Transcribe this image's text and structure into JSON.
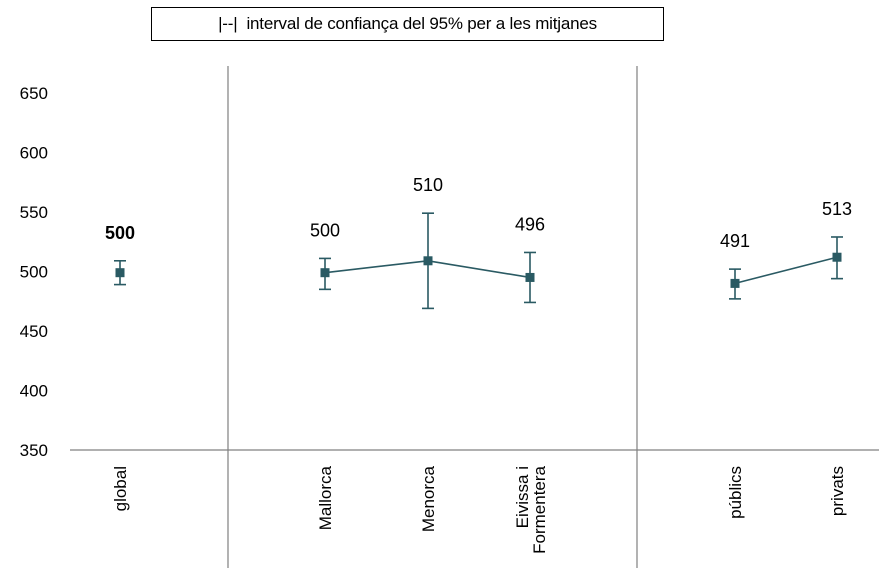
{
  "chart_data": {
    "type": "line",
    "legend_label": "|--|  interval de confiança del 95% per a les mitjanes",
    "legend_position": "top",
    "ylim": [
      350,
      650
    ],
    "yticks": [
      350,
      400,
      450,
      500,
      550,
      600,
      650
    ],
    "grid": false,
    "colors": {
      "series": "#2a5a63",
      "axis": "#808080"
    },
    "groups": [
      {
        "points": [
          {
            "category": "global",
            "value": 499,
            "ci_low": 489,
            "ci_high": 509,
            "label": "500",
            "label_bold": true
          }
        ]
      },
      {
        "points": [
          {
            "category": "Mallorca",
            "value": 499,
            "ci_low": 485,
            "ci_high": 511,
            "label": "500",
            "label_bold": false
          },
          {
            "category": "Menorca",
            "value": 509,
            "ci_low": 469,
            "ci_high": 549,
            "label": "510",
            "label_bold": false
          },
          {
            "category": "Eivissa i Formentera",
            "value": 495,
            "ci_low": 474,
            "ci_high": 516,
            "label": "496",
            "label_bold": false
          }
        ]
      },
      {
        "points": [
          {
            "category": "públics",
            "value": 490,
            "ci_low": 477,
            "ci_high": 502,
            "label": "491",
            "label_bold": false
          },
          {
            "category": "privats",
            "value": 512,
            "ci_low": 494,
            "ci_high": 529,
            "label": "513",
            "label_bold": false
          }
        ]
      }
    ]
  }
}
